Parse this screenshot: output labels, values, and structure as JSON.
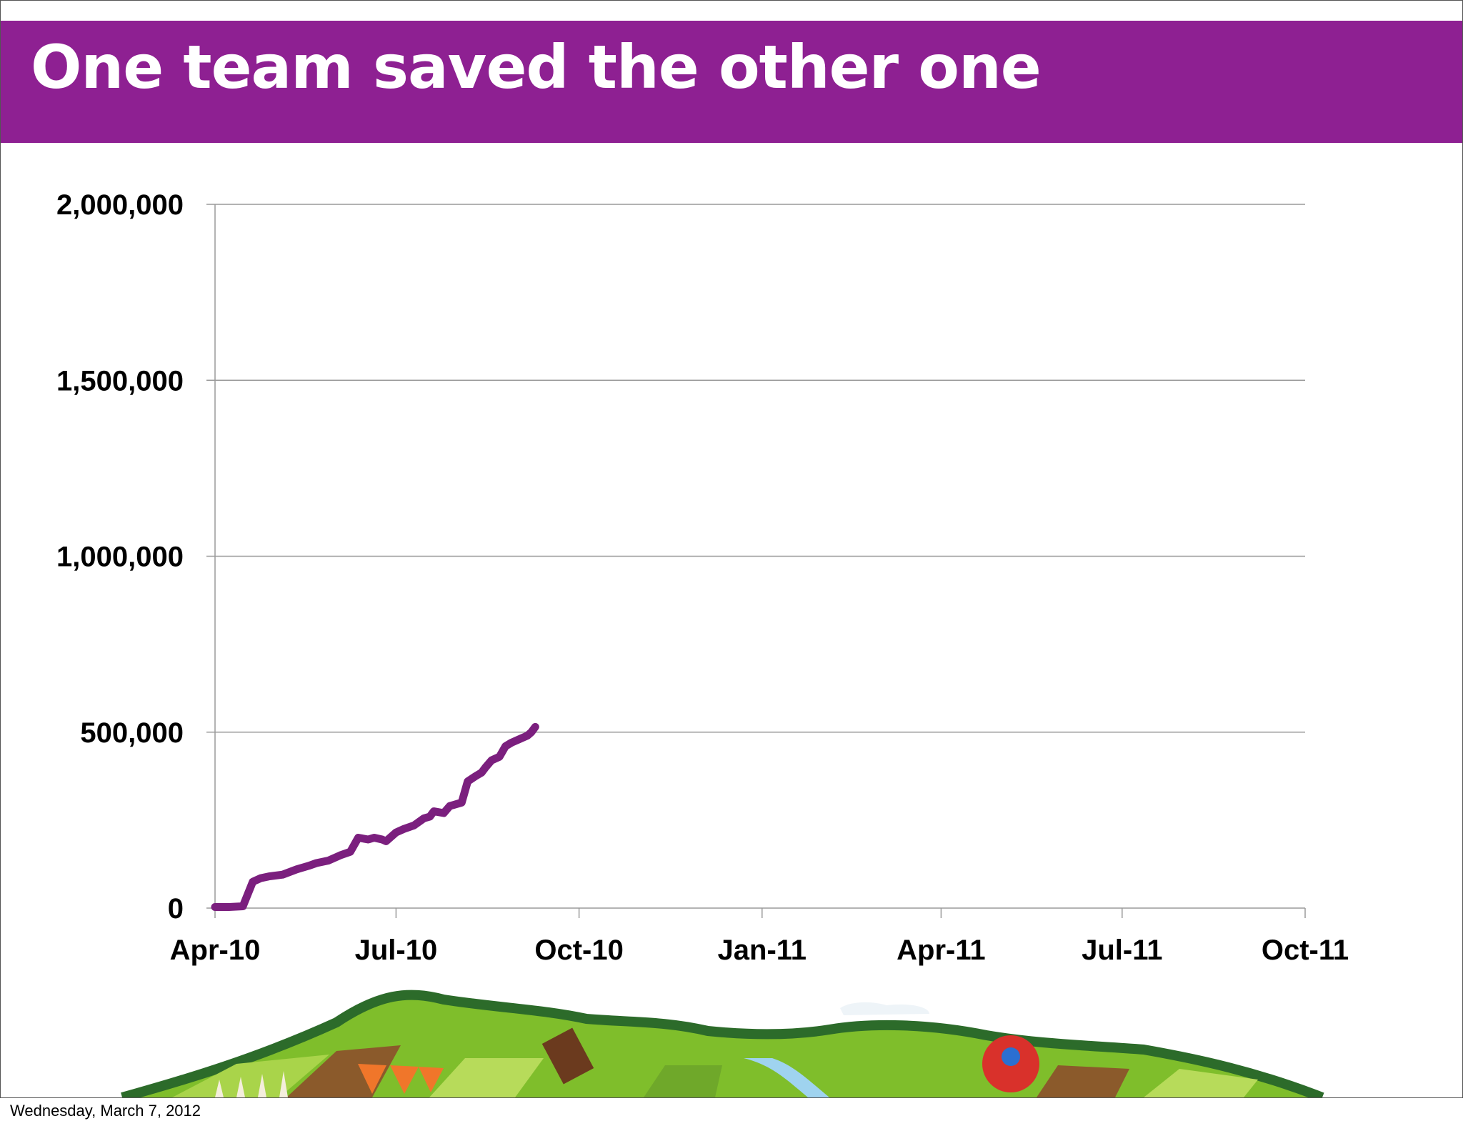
{
  "slide": {
    "title": "One team saved the other one",
    "footer_date": "Wednesday, March 7, 2012",
    "accent_color": "#8e2092"
  },
  "chart_data": {
    "type": "line",
    "title": "",
    "xlabel": "",
    "ylabel": "",
    "grid": true,
    "legend": "none",
    "line_color": "#7b1f7e",
    "ylim": [
      0,
      2000000
    ],
    "y_ticks": [
      0,
      500000,
      1000000,
      1500000,
      2000000
    ],
    "y_tick_labels": [
      "0",
      "500,000",
      "1,000,000",
      "1,500,000",
      "2,000,000"
    ],
    "xlim": [
      "2010-04-01",
      "2011-10-01"
    ],
    "x_ticks": [
      "2010-04-01",
      "2010-07-01",
      "2010-10-01",
      "2011-01-01",
      "2011-04-01",
      "2011-07-01",
      "2011-10-01"
    ],
    "x_tick_labels": [
      "Apr-10",
      "Jul-10",
      "Oct-10",
      "Jan-11",
      "Apr-11",
      "Jul-11",
      "Oct-11"
    ],
    "series": [
      {
        "x": [
          "2010-04-01",
          "2010-04-08",
          "2010-04-15",
          "2010-04-20",
          "2010-04-24",
          "2010-04-28",
          "2010-05-05",
          "2010-05-12",
          "2010-05-18",
          "2010-05-22",
          "2010-05-28",
          "2010-06-03",
          "2010-06-08",
          "2010-06-12",
          "2010-06-17",
          "2010-06-20",
          "2010-06-24",
          "2010-06-26",
          "2010-07-01",
          "2010-07-05",
          "2010-07-10",
          "2010-07-15",
          "2010-07-18",
          "2010-07-20",
          "2010-07-25",
          "2010-07-28",
          "2010-08-03",
          "2010-08-06",
          "2010-08-10",
          "2010-08-13",
          "2010-08-15",
          "2010-08-18",
          "2010-08-22",
          "2010-08-25",
          "2010-08-28",
          "2010-09-01",
          "2010-09-03",
          "2010-09-05",
          "2010-09-07",
          "2010-09-09"
        ],
        "y": [
          3000,
          3000,
          5000,
          75000,
          85000,
          90000,
          95000,
          110000,
          120000,
          128000,
          135000,
          150000,
          160000,
          200000,
          195000,
          200000,
          195000,
          190000,
          215000,
          225000,
          235000,
          255000,
          260000,
          275000,
          270000,
          290000,
          300000,
          360000,
          375000,
          385000,
          400000,
          420000,
          430000,
          460000,
          470000,
          480000,
          485000,
          490000,
          500000,
          515000
        ]
      }
    ]
  }
}
